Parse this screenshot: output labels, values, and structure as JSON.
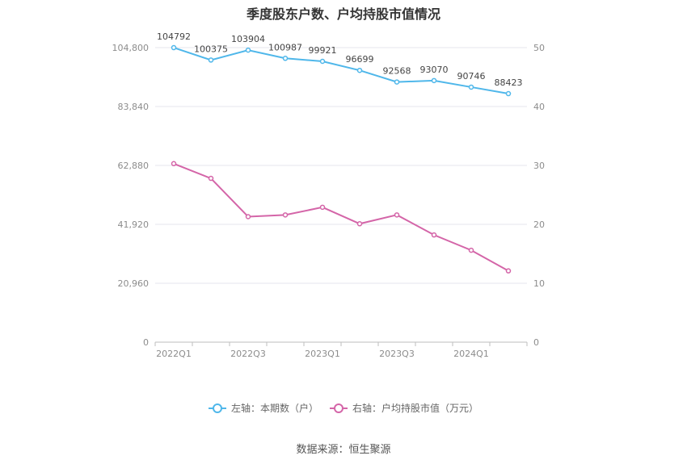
{
  "chart_data": {
    "type": "line",
    "title": "季度股东户数、户均持股市值情况",
    "x": [
      "2022Q1",
      "2022Q2",
      "2022Q3",
      "2022Q4",
      "2023Q1",
      "2023Q2",
      "2023Q3",
      "2023Q4",
      "2024Q1",
      "2024Q2"
    ],
    "x_tick_labels": [
      "2022Q1",
      "2022Q3",
      "2023Q1",
      "2023Q3",
      "2024Q1"
    ],
    "left_axis": {
      "ylim": [
        0,
        104800
      ],
      "ticks": [
        "0",
        "20,960",
        "41,920",
        "62,880",
        "83,840",
        "104,800"
      ]
    },
    "right_axis": {
      "ylim": [
        0,
        50
      ],
      "ticks": [
        "0",
        "10",
        "20",
        "30",
        "40",
        "50"
      ]
    },
    "series": [
      {
        "name": "左轴：本期数（户）",
        "axis": "left",
        "color": "#4fb7ea",
        "values": [
          104792,
          100375,
          103904,
          100987,
          99921,
          96699,
          92568,
          93070,
          90746,
          88423
        ],
        "labels": [
          "104792",
          "100375",
          "103904",
          "100987",
          "99921",
          "96699",
          "92568",
          "93070",
          "90746",
          "88423"
        ]
      },
      {
        "name": "右轴：户均持股市值（万元）",
        "axis": "right",
        "color": "#d465a8",
        "values": [
          30.3,
          27.8,
          21.3,
          21.6,
          22.9,
          20.1,
          21.6,
          18.2,
          15.6,
          12.1
        ]
      }
    ],
    "grid": true,
    "legend_position": "bottom"
  },
  "source": "数据来源：恒生聚源"
}
